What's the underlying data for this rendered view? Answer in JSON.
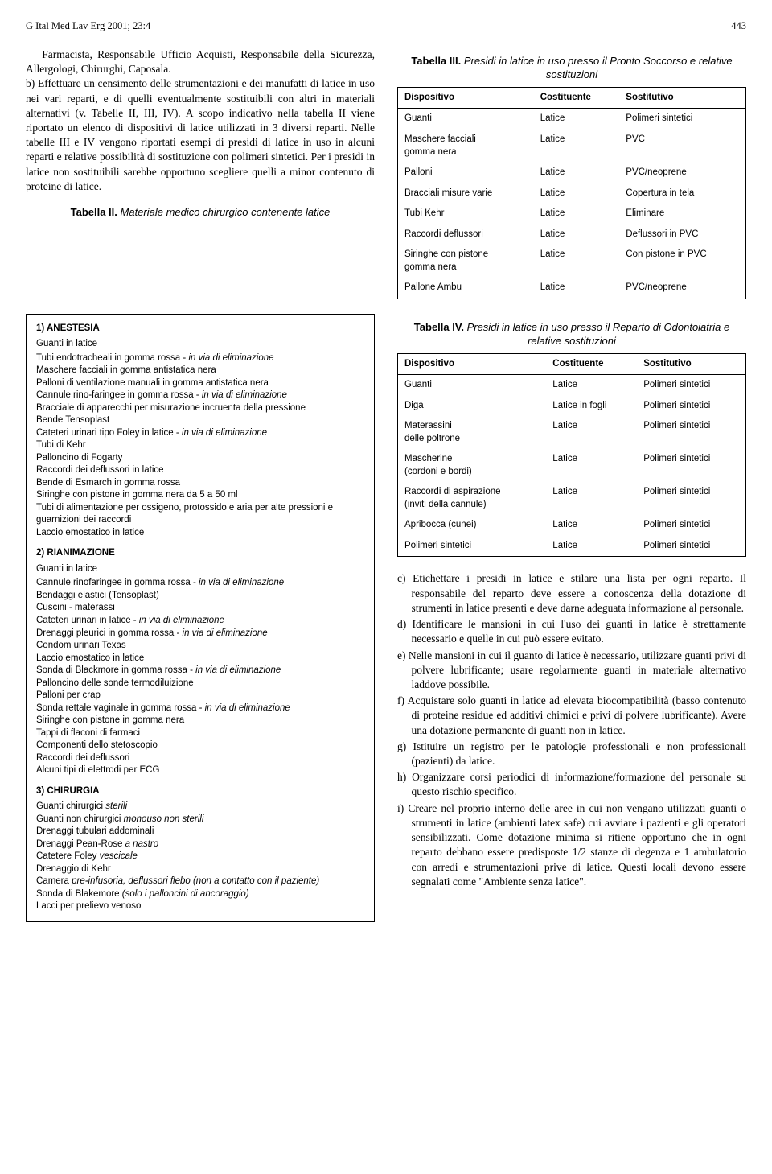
{
  "header": {
    "journal": "G Ital Med Lav Erg 2001; 23:4",
    "page": "443"
  },
  "leftIntro": {
    "para1": "Farmacista, Responsabile Ufficio Acquisti, Responsabile della Sicurezza, Allergologi, Chirurghi, Caposala.",
    "para2_b": "b) Effettuare un censimento delle strumentazioni e dei manufatti di latice in uso nei vari reparti, e di quelli eventualmente sostituibili con altri in materiali alternativi (v. Tabelle II, III, IV). A scopo indicativo nella tabella II viene riportato un elenco di dispositivi di latice utilizzati in 3 diversi reparti. Nelle tabelle III e IV vengono riportati esempi di presidi di latice in uso in alcuni reparti e relative possibilità di sostituzione con polimeri sintetici. Per i presidi in latice non sostituibili sarebbe opportuno scegliere quelli a minor contenuto di proteine di latice."
  },
  "table2": {
    "caption_bold": "Tabella II.",
    "caption_rest": "Materiale medico chirurgico contenente latice",
    "sections": [
      {
        "title": "1) ANESTESIA",
        "lead": "Guanti in latice",
        "items": [
          "Tubi endotracheali in gomma rossa - <em>in via di eliminazione</em>",
          "Maschere facciali in gomma antistatica nera",
          "Palloni di ventilazione manuali in gomma antistatica nera",
          "Cannule rino-faringee in gomma rossa - <em>in via di eliminazione</em>",
          "Bracciale di apparecchi per misurazione incruenta della pressione",
          "Bende Tensoplast",
          "Cateteri urinari tipo Foley in latice - <em>in via di eliminazione</em>",
          "Tubi di Kehr",
          "Palloncino di Fogarty",
          "Raccordi dei deflussori in latice",
          "Bende di Esmarch in gomma rossa",
          "Siringhe con pistone in gomma nera da 5 a 50 ml",
          "Tubi di alimentazione per ossigeno, protossido e aria per alte pressioni e guarnizioni dei raccordi",
          "Laccio emostatico in latice"
        ]
      },
      {
        "title": "2) RIANIMAZIONE",
        "lead": "Guanti in latice",
        "items": [
          "Cannule rinofaringee in gomma rossa - <em>in via di eliminazione</em>",
          "Bendaggi elastici (Tensoplast)",
          "Cuscini - materassi",
          "Cateteri urinari in latice - <em>in via di eliminazione</em>",
          "Drenaggi pleurici in gomma rossa - <em>in via di eliminazione</em>",
          "Condom urinari Texas",
          "Laccio emostatico in latice",
          "Sonda di Blackmore in gomma rossa - <em>in via di eliminazione</em>",
          "Palloncino delle sonde termodiluizione",
          "Palloni per crap",
          "Sonda rettale vaginale in gomma rossa - <em>in via di eliminazione</em>",
          "Siringhe con pistone in gomma nera",
          "Tappi di flaconi di farmaci",
          "Componenti dello stetoscopio",
          "Raccordi dei deflussori",
          "Alcuni tipi di elettrodi per ECG"
        ]
      },
      {
        "title": "3) CHIRURGIA",
        "lead": "",
        "items": [
          "Guanti chirurgici <em>sterili</em>",
          "Guanti non chirurgici <em>monouso non sterili</em>",
          "Drenaggi tubulari addominali",
          "Drenaggi Pean-Rose <em>a nastro</em>",
          "Catetere Foley <em>vescicale</em>",
          "Drenaggio di Kehr",
          "Camera <em>pre-infusoria, deflussori flebo (non a contatto con il paziente)</em>",
          "Sonda di Blakemore <em>(solo i palloncini di ancoraggio)</em>",
          "Lacci per prelievo venoso"
        ]
      }
    ]
  },
  "table3": {
    "caption_bold": "Tabella III.",
    "caption_rest": "Presidi in latice in uso presso il Pronto Soccorso e relative sostituzioni",
    "headers": [
      "Dispositivo",
      "Costituente",
      "Sostitutivo"
    ],
    "rows": [
      [
        "Guanti",
        "Latice",
        "Polimeri sintetici"
      ],
      [
        "Maschere facciali\ngomma nera",
        "Latice",
        "PVC"
      ],
      [
        "Palloni",
        "Latice",
        "PVC/neoprene"
      ],
      [
        "Bracciali misure varie",
        "Latice",
        "Copertura in tela"
      ],
      [
        "Tubi Kehr",
        "Latice",
        "Eliminare"
      ],
      [
        "Raccordi deflussori",
        "Latice",
        "Deflussori in PVC"
      ],
      [
        "Siringhe con pistone\ngomma nera",
        "Latice",
        "Con pistone in PVC"
      ],
      [
        "Pallone Ambu",
        "Latice",
        "PVC/neoprene"
      ]
    ]
  },
  "table4": {
    "caption_bold": "Tabella IV.",
    "caption_rest": "Presidi in latice in uso presso il Reparto di Odontoiatria e relative sostituzioni",
    "headers": [
      "Dispositivo",
      "Costituente",
      "Sostitutivo"
    ],
    "rows": [
      [
        "Guanti",
        "Latice",
        "Polimeri sintetici"
      ],
      [
        "Diga",
        "Latice in fogli",
        "Polimeri sintetici"
      ],
      [
        "Materassini\ndelle poltrone",
        "Latice",
        "Polimeri sintetici"
      ],
      [
        "Mascherine\n(cordoni e bordi)",
        "Latice",
        "Polimeri sintetici"
      ],
      [
        "Raccordi di aspirazione\n(inviti della cannule)",
        "Latice",
        "Polimeri sintetici"
      ],
      [
        "Apribocca (cunei)",
        "Latice",
        "Polimeri sintetici"
      ],
      [
        "Polimeri sintetici",
        "Latice",
        "Polimeri sintetici"
      ]
    ]
  },
  "rightList": {
    "c": "c) Etichettare i presidi in latice e stilare una lista per ogni reparto. Il responsabile del reparto deve essere a conoscenza della dotazione di strumenti in latice presenti e deve darne adeguata informazione al personale.",
    "d": "d) Identificare le mansioni in cui l'uso dei guanti in latice è strettamente necessario e quelle in cui può essere evitato.",
    "e": "e) Nelle mansioni in cui il guanto di latice è necessario, utilizzare guanti privi di polvere lubrificante; usare regolarmente guanti in materiale alternativo laddove possibile.",
    "f": "f) Acquistare solo guanti in latice ad elevata biocompatibilità (basso contenuto di proteine residue ed additivi chimici e privi di polvere lubrificante). Avere una dotazione permanente di guanti non in latice.",
    "g": "g) Istituire un registro per le patologie professionali e non professionali (pazienti) da latice.",
    "h": "h) Organizzare corsi periodici di informazione/formazione del personale su questo rischio specifico.",
    "i": "i) Creare nel proprio interno delle aree in cui non vengano utilizzati guanti o strumenti in latice (ambienti latex safe) cui avviare i pazienti e gli operatori sensibilizzati. Come dotazione minima si ritiene opportuno che in ogni reparto debbano essere predisposte 1/2 stanze di degenza e 1 ambulatorio con arredi e strumentazioni prive di latice. Questi locali devono essere segnalati come \"Ambiente senza latice\"."
  }
}
